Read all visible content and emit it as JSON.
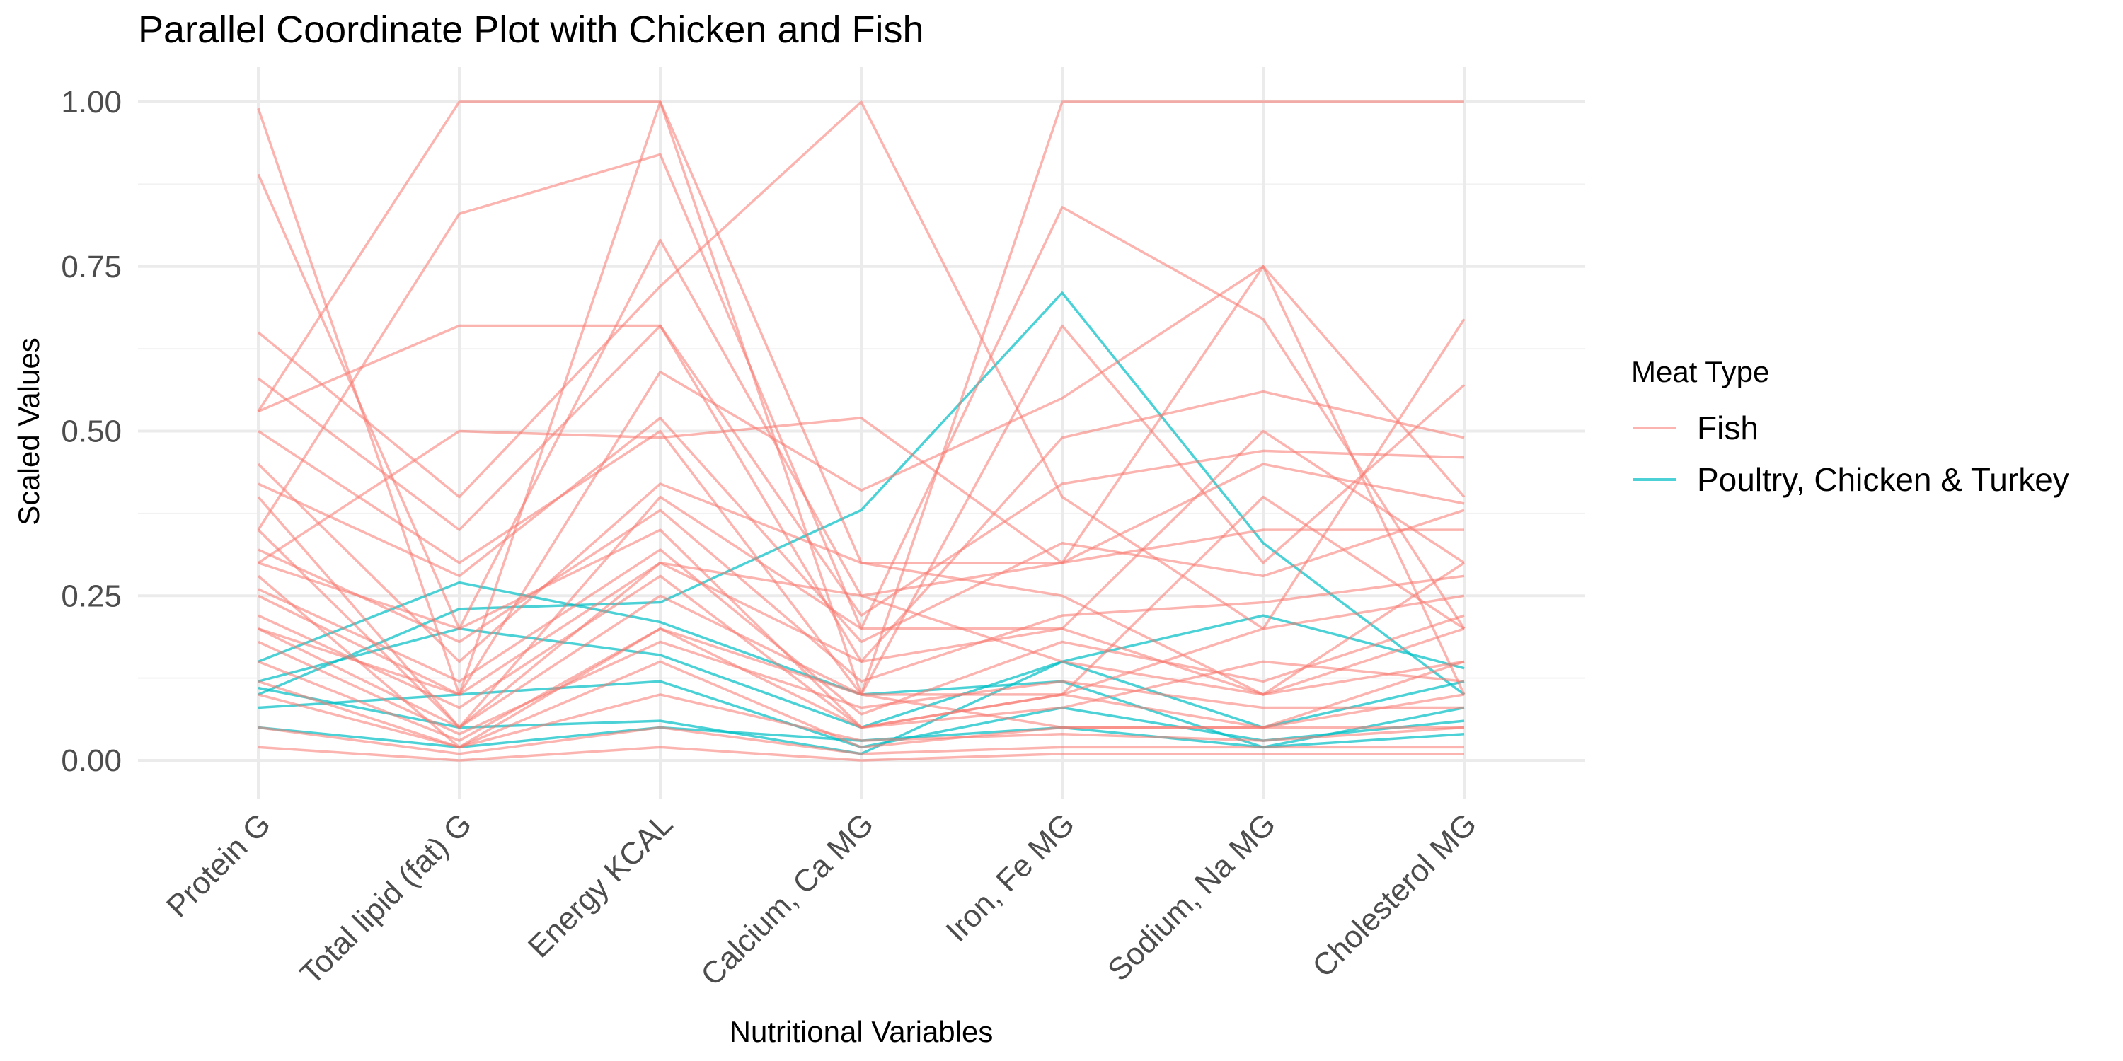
{
  "chart_data": {
    "type": "line",
    "subtype": "parallel-coordinates",
    "title": "Parallel Coordinate Plot with Chicken and Fish",
    "xlabel": "Nutritional Variables",
    "ylabel": "Scaled Values",
    "categories": [
      "Protein G",
      "Total lipid (fat) G",
      "Energy KCAL",
      "Calcium, Ca MG",
      "Iron, Fe MG",
      "Sodium, Na MG",
      "Cholesterol MG"
    ],
    "ylim": [
      0,
      1
    ],
    "yticks": [
      0.0,
      0.25,
      0.5,
      0.75,
      1.0
    ],
    "ytick_labels": [
      "0.00",
      "0.25",
      "0.50",
      "0.75",
      "1.00"
    ],
    "grid": true,
    "legend": {
      "title": "Meat Type",
      "position": "right",
      "entries": [
        "Fish",
        "Poultry, Chicken & Turkey"
      ]
    },
    "colors": {
      "Fish": "#F8766D",
      "Poultry, Chicken & Turkey": "#00BFC4"
    },
    "series": [
      {
        "group": "Fish",
        "values": [
          0.99,
          0.1,
          1.0,
          0.1,
          1.0,
          1.0,
          1.0
        ]
      },
      {
        "group": "Fish",
        "values": [
          0.53,
          1.0,
          1.0,
          0.3,
          0.25,
          0.1,
          0.3
        ]
      },
      {
        "group": "Fish",
        "values": [
          0.89,
          0.2,
          0.79,
          0.25,
          0.3,
          0.75,
          0.4
        ]
      },
      {
        "group": "Fish",
        "values": [
          0.35,
          0.83,
          0.92,
          0.2,
          0.84,
          0.67,
          0.2
        ]
      },
      {
        "group": "Fish",
        "values": [
          0.53,
          0.66,
          0.66,
          0.15,
          0.49,
          0.56,
          0.49
        ]
      },
      {
        "group": "Fish",
        "values": [
          0.3,
          0.5,
          0.49,
          0.52,
          0.3,
          0.45,
          0.39
        ]
      },
      {
        "group": "Fish",
        "values": [
          0.65,
          0.4,
          0.72,
          1.0,
          0.4,
          0.2,
          0.67
        ]
      },
      {
        "group": "Fish",
        "values": [
          0.2,
          0.1,
          0.59,
          0.41,
          0.55,
          0.75,
          0.1
        ]
      },
      {
        "group": "Fish",
        "values": [
          0.5,
          0.3,
          0.5,
          0.1,
          0.66,
          0.3,
          0.57
        ]
      },
      {
        "group": "Fish",
        "values": [
          0.4,
          0.05,
          0.4,
          0.2,
          0.2,
          0.5,
          0.3
        ]
      },
      {
        "group": "Fish",
        "values": [
          0.3,
          0.2,
          0.35,
          0.05,
          0.1,
          0.4,
          0.2
        ]
      },
      {
        "group": "Fish",
        "values": [
          0.25,
          0.1,
          0.3,
          0.15,
          0.2,
          0.1,
          0.15
        ]
      },
      {
        "group": "Fish",
        "values": [
          0.2,
          0.05,
          0.25,
          0.1,
          0.05,
          0.05,
          0.1
        ]
      },
      {
        "group": "Fish",
        "values": [
          0.15,
          0.03,
          0.2,
          0.05,
          0.1,
          0.2,
          0.25
        ]
      },
      {
        "group": "Fish",
        "values": [
          0.1,
          0.02,
          0.15,
          0.02,
          0.05,
          0.05,
          0.05
        ]
      },
      {
        "group": "Fish",
        "values": [
          0.45,
          0.15,
          0.42,
          0.3,
          0.3,
          0.35,
          0.35
        ]
      },
      {
        "group": "Fish",
        "values": [
          0.35,
          0.05,
          0.3,
          0.25,
          0.15,
          0.1,
          0.2
        ]
      },
      {
        "group": "Fish",
        "values": [
          0.28,
          0.02,
          0.2,
          0.1,
          0.1,
          0.05,
          0.15
        ]
      },
      {
        "group": "Fish",
        "values": [
          0.22,
          0.08,
          0.28,
          0.05,
          0.08,
          0.15,
          0.12
        ]
      },
      {
        "group": "Fish",
        "values": [
          0.18,
          0.04,
          0.18,
          0.08,
          0.12,
          0.08,
          0.08
        ]
      },
      {
        "group": "Fish",
        "values": [
          0.12,
          0.02,
          0.1,
          0.03,
          0.04,
          0.03,
          0.05
        ]
      },
      {
        "group": "Fish",
        "values": [
          0.05,
          0.01,
          0.05,
          0.01,
          0.02,
          0.02,
          0.02
        ]
      },
      {
        "group": "Fish",
        "values": [
          0.02,
          0.0,
          0.02,
          0.0,
          0.01,
          0.01,
          0.01
        ]
      },
      {
        "group": "Fish",
        "values": [
          0.58,
          0.35,
          0.66,
          0.22,
          0.42,
          0.47,
          0.46
        ]
      },
      {
        "group": "Fish",
        "values": [
          0.42,
          0.28,
          0.52,
          0.18,
          0.33,
          0.28,
          0.38
        ]
      },
      {
        "group": "Fish",
        "values": [
          0.32,
          0.18,
          0.38,
          0.12,
          0.22,
          0.24,
          0.28
        ]
      },
      {
        "group": "Fish",
        "values": [
          0.26,
          0.12,
          0.32,
          0.07,
          0.18,
          0.12,
          0.22
        ]
      },
      {
        "group": "Poultry, Chicken & Turkey",
        "values": [
          0.1,
          0.23,
          0.24,
          0.38,
          0.71,
          0.33,
          0.1
        ]
      },
      {
        "group": "Poultry, Chicken & Turkey",
        "values": [
          0.15,
          0.27,
          0.21,
          0.1,
          0.12,
          0.02,
          0.08
        ]
      },
      {
        "group": "Poultry, Chicken & Turkey",
        "values": [
          0.12,
          0.2,
          0.16,
          0.05,
          0.15,
          0.05,
          0.12
        ]
      },
      {
        "group": "Poultry, Chicken & Turkey",
        "values": [
          0.08,
          0.1,
          0.12,
          0.02,
          0.08,
          0.03,
          0.06
        ]
      },
      {
        "group": "Poultry, Chicken & Turkey",
        "values": [
          0.11,
          0.05,
          0.06,
          0.01,
          0.15,
          0.22,
          0.14
        ]
      },
      {
        "group": "Poultry, Chicken & Turkey",
        "values": [
          0.05,
          0.02,
          0.05,
          0.03,
          0.05,
          0.02,
          0.04
        ]
      }
    ]
  }
}
